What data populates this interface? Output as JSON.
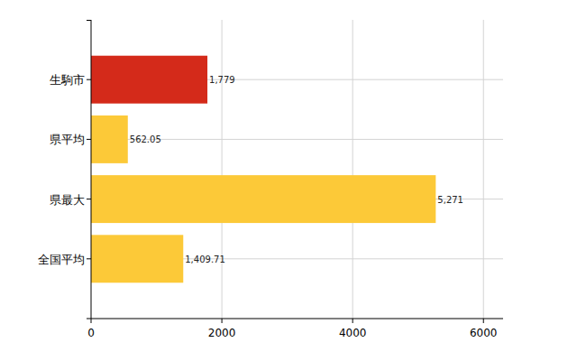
{
  "chart_data": {
    "type": "bar",
    "orientation": "horizontal",
    "categories": [
      "生駒市",
      "県平均",
      "県最大",
      "全国平均"
    ],
    "values": [
      1779,
      562.05,
      5271,
      1409.71
    ],
    "value_labels": [
      "1,779",
      "562.05",
      "5,271",
      "1,409.71"
    ],
    "colors": [
      "#d42a1a",
      "#fcc938",
      "#fcc938",
      "#fcc938"
    ],
    "xlim": [
      0,
      6300
    ],
    "xticks": [
      0,
      2000,
      4000,
      6000
    ],
    "grid": true,
    "data_labels": true
  }
}
